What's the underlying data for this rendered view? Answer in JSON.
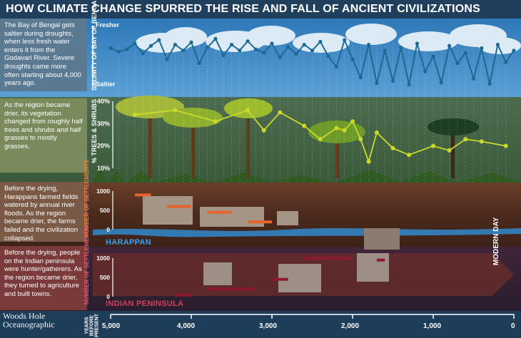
{
  "title": "HOW CLIMATE CHANGE SPURRED THE RISE AND FALL OF ANCIENT CIVILIZATIONS",
  "panels": {
    "salinity": "The Bay of Bengal gets saltier during droughts, when less fresh water enters it from the Godavari River. Severe droughts came more often starting about 4,000 years ago.",
    "vegetation": "As the region became drier, its vegetation changed from roughly half trees and shrubs and half grasses to mostly grasses.",
    "harappa": "Before the drying, Harappans farmed fields watered by annual river floods. As the region became drier, the farms failed and the civilization collapsed.",
    "india": "Before the drying, people on the Indian peninsula were hunter/gatherers. As the region became drier, they turned to agriculture and built towns."
  },
  "labels": {
    "salinity_axis": "SALINITY OF BAY OF BENGAL",
    "fresher": "Fresher",
    "saltier": "Saltier",
    "veg_axis": "% TREES & SHRUBS",
    "settlements_axis": "NUMBER OF SETTLEMENTS",
    "harappan": "HARAPPAN",
    "indian_peninsula": "INDIAN PENINSULA",
    "modern_day": "MODERN DAY",
    "years_axis": "YEARS BEFORE PRESENT",
    "logo_line1": "Woods Hole",
    "logo_line2": "Oceanographic"
  },
  "colors": {
    "salinity_line": "#1c6a94",
    "veg_line": "#c9da2a",
    "harappan": "#2f8fd8",
    "indian": "#7a1426",
    "settle_harappan_bar": "#e8632b",
    "settle_indian_bar": "#8b1a2e"
  },
  "chart_data": [
    {
      "type": "line",
      "title": "SALINITY OF BAY OF BENGAL",
      "ylabel": "SALINITY OF BAY OF BENGAL",
      "y_tick_labels": [
        "Fresher",
        "Saltier"
      ],
      "x_label": "YEARS BEFORE PRESENT",
      "x_ticks": [
        5000,
        4000,
        3000,
        2000,
        1000,
        0
      ],
      "xlim": [
        5100,
        0
      ],
      "ylim": [
        0,
        1
      ],
      "y_note": "0 = Fresher, 1 = Saltier (relative scale)",
      "series": [
        {
          "x": [
            5000,
            4900,
            4800,
            4700,
            4600,
            4500,
            4400,
            4300,
            4200,
            4100,
            4000,
            3900,
            3800,
            3700,
            3600,
            3500,
            3400,
            3300,
            3200,
            3100,
            3000,
            2900,
            2800,
            2700,
            2600,
            2500,
            2400,
            2300,
            2200,
            2100,
            2000,
            1900,
            1800,
            1700,
            1600,
            1500,
            1400,
            1300,
            1200,
            1100,
            1000,
            900,
            800,
            700,
            600,
            500,
            400,
            300,
            200,
            100,
            0
          ],
          "values": [
            0.36,
            0.42,
            0.38,
            0.28,
            0.45,
            0.32,
            0.22,
            0.55,
            0.3,
            0.4,
            0.26,
            0.62,
            0.35,
            0.2,
            0.48,
            0.3,
            0.4,
            0.24,
            0.38,
            0.44,
            0.28,
            0.52,
            0.34,
            0.46,
            0.3,
            0.4,
            0.25,
            0.5,
            0.68,
            0.22,
            0.55,
            0.86,
            0.3,
            0.96,
            0.4,
            0.92,
            0.35,
            0.98,
            0.28,
            0.76,
            0.5,
            0.95,
            0.32,
            0.62,
            0.44,
            0.88,
            0.36,
            0.97,
            0.3,
            0.6,
            0.4
          ]
        }
      ]
    },
    {
      "type": "line",
      "title": "% TREES & SHRUBS",
      "ylabel": "% TREES & SHRUBS",
      "y_ticks": [
        "10%",
        "20%",
        "30%",
        "40%"
      ],
      "ylim": [
        10,
        40
      ],
      "xlim": [
        5100,
        0
      ],
      "series": [
        {
          "x": [
            4700,
            4200,
            3700,
            3300,
            3100,
            2900,
            2600,
            2400,
            2200,
            2100,
            2000,
            1900,
            1800,
            1700,
            1500,
            1300,
            1000,
            800,
            600,
            400,
            100
          ],
          "values": [
            34,
            36,
            31,
            36,
            27,
            35,
            29,
            23,
            28,
            27,
            31,
            23,
            13,
            26,
            19,
            16,
            20,
            18,
            23,
            22,
            20
          ]
        }
      ]
    },
    {
      "type": "area",
      "title": "NUMBER OF SETTLEMENTS",
      "ylabel": "NUMBER OF SETTLEMENTS",
      "y_ticks": [
        0,
        500,
        1000
      ],
      "ylim": [
        0,
        1000
      ],
      "xlim": [
        5100,
        0
      ],
      "series": [
        {
          "name": "HARAPPAN",
          "x": [
            4700,
            4500,
            4300,
            4000,
            3800,
            3500,
            3300,
            3000,
            2800
          ],
          "values": [
            900,
            900,
            600,
            600,
            450,
            450,
            200,
            200,
            0
          ]
        },
        {
          "name": "INDIAN PENINSULA",
          "x": [
            4800,
            4500,
            4200,
            4000,
            3800,
            3600,
            3200,
            3000,
            2800,
            2600,
            2300,
            2000,
            1700,
            1600
          ],
          "values": [
            0,
            0,
            40,
            40,
            200,
            200,
            200,
            450,
            450,
            1000,
            1000,
            1000,
            950,
            950
          ]
        }
      ]
    }
  ]
}
